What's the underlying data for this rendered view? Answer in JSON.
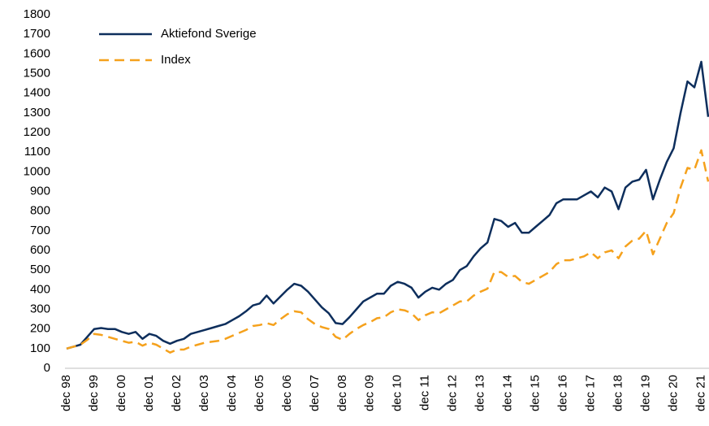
{
  "chart_data": {
    "type": "line",
    "categories": [
      "dec 98",
      null,
      null,
      null,
      "dec 99",
      null,
      null,
      null,
      "dec 00",
      null,
      null,
      null,
      "dec 01",
      null,
      null,
      null,
      "dec 02",
      null,
      null,
      null,
      "dec 03",
      null,
      null,
      null,
      "dec 04",
      null,
      null,
      null,
      "dec 05",
      null,
      null,
      null,
      "dec 06",
      null,
      null,
      null,
      "dec 07",
      null,
      null,
      null,
      "dec 08",
      null,
      null,
      null,
      "dec 09",
      null,
      null,
      null,
      "dec 10",
      null,
      null,
      null,
      "dec 11",
      null,
      null,
      null,
      "dec 12",
      null,
      null,
      null,
      "dec 13",
      null,
      null,
      null,
      "dec 14",
      null,
      null,
      null,
      "dec 15",
      null,
      null,
      null,
      "dec 16",
      null,
      null,
      null,
      "dec 17",
      null,
      null,
      null,
      "dec 18",
      null,
      null,
      null,
      "dec 19",
      null,
      null,
      null,
      "dec 20",
      null,
      null,
      null,
      "dec 21",
      null
    ],
    "series": [
      {
        "name": "Aktiefond Sverige",
        "color": "#0d2e5c",
        "dash": false,
        "values": [
          100,
          110,
          120,
          160,
          200,
          205,
          200,
          200,
          185,
          175,
          185,
          150,
          175,
          165,
          140,
          125,
          140,
          150,
          175,
          185,
          195,
          205,
          215,
          225,
          245,
          265,
          290,
          320,
          330,
          370,
          330,
          365,
          400,
          430,
          420,
          390,
          350,
          310,
          280,
          230,
          225,
          260,
          300,
          340,
          360,
          380,
          380,
          420,
          440,
          430,
          410,
          360,
          390,
          410,
          400,
          430,
          450,
          500,
          520,
          570,
          610,
          640,
          760,
          750,
          720,
          740,
          690,
          690,
          720,
          750,
          780,
          840,
          860,
          860,
          860,
          880,
          900,
          870,
          920,
          900,
          810,
          920,
          950,
          960,
          1010,
          860,
          960,
          1050,
          1120,
          1300,
          1460,
          1430,
          1560,
          1280
        ]
      },
      {
        "name": "Index",
        "color": "#f5a11c",
        "dash": true,
        "values": [
          100,
          110,
          120,
          145,
          175,
          170,
          160,
          150,
          140,
          130,
          135,
          115,
          130,
          120,
          100,
          80,
          95,
          95,
          110,
          120,
          130,
          135,
          140,
          150,
          165,
          180,
          195,
          215,
          220,
          230,
          220,
          250,
          275,
          290,
          285,
          250,
          225,
          210,
          200,
          160,
          145,
          175,
          200,
          220,
          235,
          255,
          260,
          285,
          300,
          295,
          280,
          245,
          270,
          285,
          280,
          300,
          320,
          340,
          340,
          370,
          390,
          405,
          490,
          490,
          465,
          470,
          440,
          430,
          450,
          470,
          490,
          530,
          550,
          550,
          560,
          570,
          590,
          560,
          590,
          600,
          560,
          620,
          650,
          660,
          700,
          580,
          660,
          740,
          790,
          920,
          1020,
          1010,
          1110,
          950
        ]
      }
    ],
    "ylim": [
      0,
      1800
    ],
    "yticks": [
      0,
      100,
      200,
      300,
      400,
      500,
      600,
      700,
      800,
      900,
      1000,
      1100,
      1200,
      1300,
      1400,
      1500,
      1600,
      1700,
      1800
    ],
    "grid": false
  }
}
